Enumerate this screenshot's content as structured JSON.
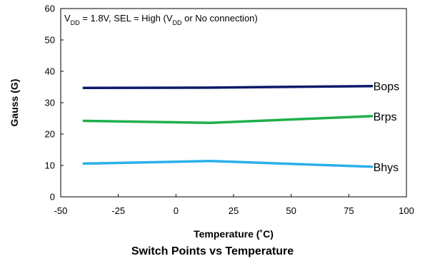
{
  "chart_data": {
    "type": "line",
    "title": "Switch Points vs Temperature",
    "xlabel": "Temperature (˚C)",
    "ylabel": "Gauss (G)",
    "xlim": [
      -50,
      100
    ],
    "ylim": [
      0,
      60
    ],
    "x_ticks": [
      -50,
      -25,
      0,
      25,
      50,
      75,
      100
    ],
    "y_ticks": [
      0,
      10,
      20,
      30,
      40,
      50,
      60
    ],
    "annotation": {
      "prefix": "V",
      "sub": "DD",
      "mid": " = 1.8V, SEL = High (V",
      "sub2": "DD",
      "suffix": " or No connection)"
    },
    "grid": false,
    "legend": "inline labels at line ends",
    "series": [
      {
        "name": "Bops",
        "color": "#0d1a6b",
        "x": [
          -40,
          15,
          85
        ],
        "y": [
          34.7,
          34.8,
          35.3
        ]
      },
      {
        "name": "Brps",
        "color": "#1fb04a",
        "x": [
          -40,
          15,
          85
        ],
        "y": [
          24.2,
          23.6,
          25.7
        ]
      },
      {
        "name": "Bhys",
        "color": "#2ab0ea",
        "x": [
          -40,
          15,
          85
        ],
        "y": [
          10.6,
          11.4,
          9.6
        ]
      }
    ]
  }
}
